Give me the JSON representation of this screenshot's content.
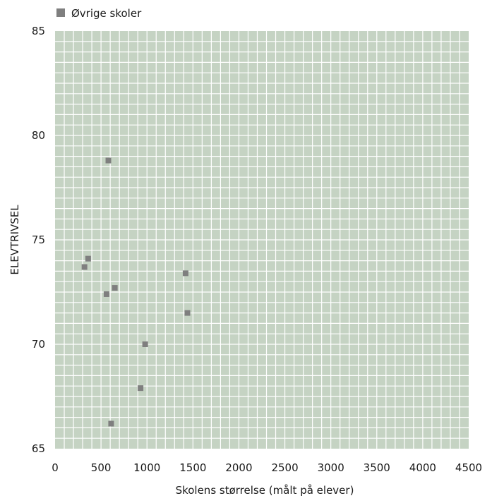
{
  "chart_data": {
    "type": "scatter",
    "title": "",
    "xlabel": "Skolens størrelse (målt på elever)",
    "ylabel": "ELEVTRIVSEL",
    "xlim": [
      0,
      4500
    ],
    "ylim": [
      65,
      85
    ],
    "x_ticks": [
      "0",
      "500",
      "1000",
      "1500",
      "2000",
      "2500",
      "3000",
      "3500",
      "4000",
      "4500"
    ],
    "y_ticks": [
      "65",
      "70",
      "75",
      "80",
      "85"
    ],
    "grid": true,
    "legend": "top-left",
    "colors": {
      "plot_bg": "#c5d3c3",
      "grid": "#ffffff",
      "marker": "#7f7f7f"
    },
    "series": [
      {
        "name": "Øvrige skoler",
        "points": [
          {
            "x": 580,
            "y": 78.8
          },
          {
            "x": 360,
            "y": 74.1
          },
          {
            "x": 320,
            "y": 73.7
          },
          {
            "x": 560,
            "y": 72.4
          },
          {
            "x": 650,
            "y": 72.7
          },
          {
            "x": 1420,
            "y": 73.4
          },
          {
            "x": 1440,
            "y": 71.5
          },
          {
            "x": 980,
            "y": 70.0
          },
          {
            "x": 930,
            "y": 67.9
          },
          {
            "x": 610,
            "y": 66.2
          }
        ]
      }
    ]
  }
}
